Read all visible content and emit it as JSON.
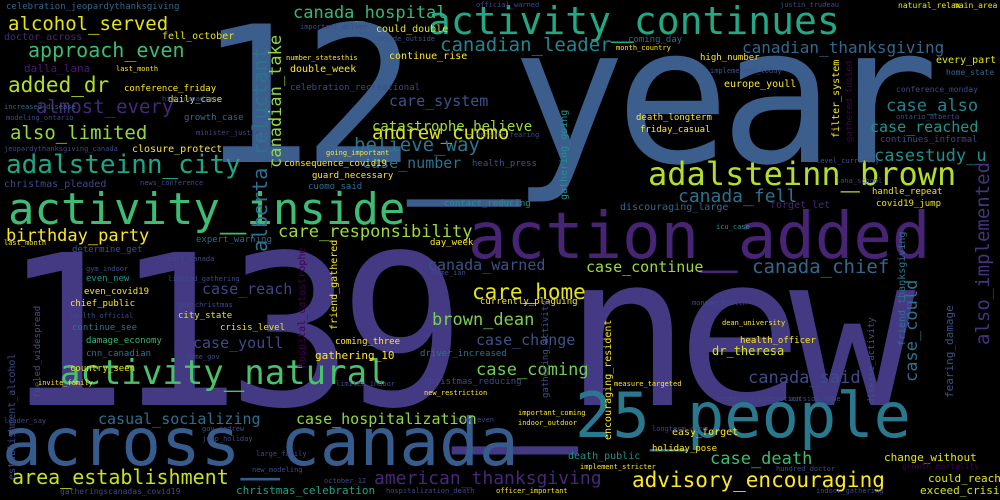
{
  "wordcloud": {
    "background": "#000000",
    "words": [
      {
        "text": "1139_new",
        "color": "#443983",
        "orientation": "horizontal"
      },
      {
        "text": "12_year",
        "color": "#3b5e8d",
        "orientation": "horizontal"
      },
      {
        "text": "action_added",
        "color": "#482475",
        "orientation": "horizontal"
      },
      {
        "text": "across_canada",
        "color": "#365c8d",
        "orientation": "horizontal"
      },
      {
        "text": "25_people",
        "color": "#2a788e",
        "orientation": "horizontal"
      },
      {
        "text": "activity_continues",
        "color": "#22a884",
        "orientation": "horizontal"
      },
      {
        "text": "activity_inside",
        "color": "#3dbc74",
        "orientation": "horizontal"
      },
      {
        "text": "activity_natural",
        "color": "#4ac16d",
        "orientation": "horizontal"
      },
      {
        "text": "adalsteinn_brown",
        "color": "#b5de2b",
        "orientation": "horizontal"
      },
      {
        "text": "adalsteinn_city",
        "color": "#20a486",
        "orientation": "horizontal"
      },
      {
        "text": "canadian_leader",
        "color": "#25848e",
        "orientation": "horizontal"
      },
      {
        "text": "canadian_thanksgiving",
        "color": "#31688e",
        "orientation": "horizontal"
      },
      {
        "text": "canada_hospital",
        "color": "#35b779",
        "orientation": "horizontal"
      },
      {
        "text": "alcohol_served",
        "color": "#e5e419",
        "orientation": "horizontal"
      },
      {
        "text": "approach_even",
        "color": "#3dbc74",
        "orientation": "horizontal"
      },
      {
        "text": "added_dr",
        "color": "#b5de2b",
        "orientation": "horizontal"
      },
      {
        "text": "almost_every",
        "color": "#482878",
        "orientation": "horizontal"
      },
      {
        "text": "also_limited",
        "color": "#90d743",
        "orientation": "horizontal"
      },
      {
        "text": "andrew_cuomo",
        "color": "#e5e419",
        "orientation": "horizontal"
      },
      {
        "text": "believe_way",
        "color": "#2a788e",
        "orientation": "horizontal"
      },
      {
        "text": "care_system",
        "color": "#3b528b",
        "orientation": "horizontal"
      },
      {
        "text": "catastrophe_believe",
        "color": "#9fda3a",
        "orientation": "horizontal"
      },
      {
        "text": "case_also",
        "color": "#26828e",
        "orientation": "horizontal"
      },
      {
        "text": "case_reached",
        "color": "#1f948c",
        "orientation": "horizontal"
      },
      {
        "text": "casestudy_u",
        "color": "#21918c",
        "orientation": "horizontal"
      },
      {
        "text": "case_number",
        "color": "#2c728e",
        "orientation": "horizontal"
      },
      {
        "text": "canada_fell",
        "color": "#2c728e",
        "orientation": "horizontal"
      },
      {
        "text": "birthday_party",
        "color": "#fde725",
        "orientation": "horizontal"
      },
      {
        "text": "care_responsibility",
        "color": "#9fda3a",
        "orientation": "horizontal"
      },
      {
        "text": "canada_warned",
        "color": "#3b528b",
        "orientation": "horizontal"
      },
      {
        "text": "case_continue",
        "color": "#9fda3a",
        "orientation": "horizontal"
      },
      {
        "text": "canada_chief",
        "color": "#31688e",
        "orientation": "horizontal"
      },
      {
        "text": "care_home",
        "color": "#e5e419",
        "orientation": "horizontal"
      },
      {
        "text": "brown_dean",
        "color": "#7ad151",
        "orientation": "horizontal"
      },
      {
        "text": "case_change",
        "color": "#3b528b",
        "orientation": "horizontal"
      },
      {
        "text": "case_coming",
        "color": "#6ece58",
        "orientation": "horizontal"
      },
      {
        "text": "case_reach",
        "color": "#414487",
        "orientation": "horizontal"
      },
      {
        "text": "case_youll",
        "color": "#3e4a89",
        "orientation": "horizontal"
      },
      {
        "text": "canada_said",
        "color": "#3e4a89",
        "orientation": "horizontal"
      },
      {
        "text": "case_hospitalization",
        "color": "#8fd744",
        "orientation": "horizontal"
      },
      {
        "text": "casual_socializing",
        "color": "#2e6f8e",
        "orientation": "horizontal"
      },
      {
        "text": "american_thanksgiving",
        "color": "#482878",
        "orientation": "horizontal"
      },
      {
        "text": "area_establishment",
        "color": "#c8e020",
        "orientation": "horizontal"
      },
      {
        "text": "advisory_encouraging",
        "color": "#fde725",
        "orientation": "horizontal"
      },
      {
        "text": "case_death",
        "color": "#3dbc74",
        "orientation": "horizontal"
      },
      {
        "text": "christmas_celebration",
        "color": "#1fa187",
        "orientation": "horizontal"
      },
      {
        "text": "could_reach",
        "color": "#e5e419",
        "orientation": "horizontal"
      },
      {
        "text": "exceed_crisis",
        "color": "#d8e219",
        "orientation": "horizontal"
      },
      {
        "text": "change_without",
        "color": "#e5e419",
        "orientation": "horizontal"
      },
      {
        "text": "growth_mortality",
        "color": "#440154",
        "orientation": "horizontal"
      },
      {
        "text": "dr_theresa",
        "color": "#d8e219",
        "orientation": "horizontal"
      },
      {
        "text": "gathering_10",
        "color": "#fde725",
        "orientation": "horizontal"
      },
      {
        "text": "fell_october",
        "color": "#e5e419",
        "orientation": "horizontal"
      },
      {
        "text": "could_double",
        "color": "#e5e419",
        "orientation": "horizontal"
      },
      {
        "text": "double_week",
        "color": "#fde725",
        "orientation": "horizontal"
      },
      {
        "text": "continue_rise",
        "color": "#fde725",
        "orientation": "horizontal"
      },
      {
        "text": "high_number",
        "color": "#fde725",
        "orientation": "horizontal"
      },
      {
        "text": "coming_day",
        "color": "#31688e",
        "orientation": "horizontal"
      },
      {
        "text": "dalla_lana",
        "color": "#481a6c",
        "orientation": "horizontal"
      },
      {
        "text": "daily_case",
        "color": "#fde725",
        "orientation": "horizontal"
      },
      {
        "text": "conference_friday",
        "color": "#fde725",
        "orientation": "horizontal"
      },
      {
        "text": "high_canadian",
        "color": "#3b528b",
        "orientation": "horizontal"
      },
      {
        "text": "closure_protect",
        "color": "#fde725",
        "orientation": "horizontal"
      },
      {
        "text": "christmas_pleaded",
        "color": "#3e4a89",
        "orientation": "horizontal"
      },
      {
        "text": "consequence_covid19",
        "color": "#fde725",
        "orientation": "horizontal"
      },
      {
        "text": "guard_necessary",
        "color": "#fde725",
        "orientation": "horizontal"
      },
      {
        "text": "cuomo_said",
        "color": "#2c728e",
        "orientation": "horizontal"
      },
      {
        "text": "health_press",
        "color": "#3b528b",
        "orientation": "horizontal"
      },
      {
        "text": "contact_reducing",
        "color": "#21918c",
        "orientation": "horizontal"
      },
      {
        "text": "discouraging_large",
        "color": "#31688e",
        "orientation": "horizontal"
      },
      {
        "text": "forget_let",
        "color": "#482878",
        "orientation": "horizontal"
      },
      {
        "text": "handle_repeat",
        "color": "#e5e419",
        "orientation": "horizontal"
      },
      {
        "text": "covid19_jump",
        "color": "#e5e419",
        "orientation": "horizontal"
      },
      {
        "text": "day_week",
        "color": "#fde725",
        "orientation": "horizontal"
      },
      {
        "text": "expert_warning",
        "color": "#31688e",
        "orientation": "horizontal"
      },
      {
        "text": "determine_get",
        "color": "#3b528b",
        "orientation": "horizontal"
      },
      {
        "text": "even_new",
        "color": "#21918c",
        "orientation": "horizontal"
      },
      {
        "text": "even_covid19",
        "color": "#fde725",
        "orientation": "horizontal"
      },
      {
        "text": "chief_public",
        "color": "#fde725",
        "orientation": "horizontal"
      },
      {
        "text": "city_state",
        "color": "#e5e419",
        "orientation": "horizontal"
      },
      {
        "text": "crisis_level",
        "color": "#e5e419",
        "orientation": "horizontal"
      },
      {
        "text": "continue_see",
        "color": "#2c728e",
        "orientation": "horizontal"
      },
      {
        "text": "damage_economy",
        "color": "#35b779",
        "orientation": "horizontal"
      },
      {
        "text": "cnn_canadian",
        "color": "#2c728e",
        "orientation": "horizontal"
      },
      {
        "text": "coming_three",
        "color": "#fde725",
        "orientation": "horizontal"
      },
      {
        "text": "driver_increased",
        "color": "#2c728e",
        "orientation": "horizontal"
      },
      {
        "text": "christmas_reducing",
        "color": "#3e4a89",
        "orientation": "horizontal"
      },
      {
        "text": "country_seen",
        "color": "#e5e419",
        "orientation": "horizontal"
      },
      {
        "text": "currently_plaguing",
        "color": "#fde725",
        "orientation": "horizontal"
      },
      {
        "text": "easy_forget",
        "color": "#fde725",
        "orientation": "horizontal"
      },
      {
        "text": "holiday_pose",
        "color": "#fde725",
        "orientation": "horizontal"
      },
      {
        "text": "death_public",
        "color": "#21918c",
        "orientation": "horizontal"
      },
      {
        "text": "health_officer",
        "color": "#fde725",
        "orientation": "horizontal"
      },
      {
        "text": "death_longterm",
        "color": "#fde725",
        "orientation": "horizontal"
      },
      {
        "text": "friday_casual",
        "color": "#fde725",
        "orientation": "horizontal"
      },
      {
        "text": "europe_youll",
        "color": "#fde725",
        "orientation": "horizontal"
      },
      {
        "text": "case_could",
        "color": "#2c728e",
        "orientation": "vertical"
      },
      {
        "text": "alberta_reluctant",
        "color": "#2c728e",
        "orientation": "vertical"
      },
      {
        "text": "canadian_take",
        "color": "#90d743",
        "orientation": "vertical"
      },
      {
        "text": "also_implemented",
        "color": "#46327e",
        "orientation": "vertical"
      },
      {
        "text": "gathering_activity",
        "color": "#3b528b",
        "orientation": "vertical"
      },
      {
        "text": "encouraging_resident",
        "color": "#fde725",
        "orientation": "vertical"
      },
      {
        "text": "filter_system",
        "color": "#fde725",
        "orientation": "vertical"
      },
      {
        "text": "gathering_going",
        "color": "#21918c",
        "orientation": "vertical"
      },
      {
        "text": "gathered_fueled",
        "color": "#440154",
        "orientation": "vertical"
      },
      {
        "text": "fearing_damage",
        "color": "#3b528b",
        "orientation": "vertical"
      },
      {
        "text": "friend_thanksgiving",
        "color": "#2c728e",
        "orientation": "vertical"
      },
      {
        "text": "establishment_alcohol",
        "color": "#3e4a89",
        "orientation": "vertical"
      },
      {
        "text": "fueled_widespread",
        "color": "#3b528b",
        "orientation": "vertical"
      },
      {
        "text": "hospital_catastrophe",
        "color": "#440154",
        "orientation": "vertical"
      },
      {
        "text": "friend_gathered",
        "color": "#fde725",
        "orientation": "vertical"
      },
      {
        "text": "disease_activity",
        "color": "#3b528b",
        "orientation": "vertical"
      },
      {
        "text": "celebration_jeopardythanksgiving",
        "color": "#31688e",
        "orientation": "horizontal"
      },
      {
        "text": "doctor_across",
        "color": "#482878",
        "orientation": "horizontal"
      },
      {
        "text": "celebration_recreational",
        "color": "#3e4a89",
        "orientation": "horizontal"
      },
      {
        "text": "important_driver",
        "color": "#3e4a89",
        "orientation": "horizontal"
      },
      {
        "text": "inside_outside",
        "color": "#3b528b",
        "orientation": "horizontal"
      },
      {
        "text": "official_warned",
        "color": "#3e4a89",
        "orientation": "horizontal"
      },
      {
        "text": "justin_trudeau",
        "color": "#3e4a89",
        "orientation": "horizontal"
      },
      {
        "text": "natural_relax",
        "color": "#e5e419",
        "orientation": "horizontal"
      },
      {
        "text": "main_area",
        "color": "#e5e419",
        "orientation": "horizontal"
      },
      {
        "text": "every_part",
        "color": "#e5e419",
        "orientation": "horizontal"
      },
      {
        "text": "home_state",
        "color": "#31688e",
        "orientation": "horizontal"
      },
      {
        "text": "conference_monday",
        "color": "#3e4a89",
        "orientation": "horizontal"
      },
      {
        "text": "ontario_alberta",
        "color": "#3e4a89",
        "orientation": "horizontal"
      },
      {
        "text": "continues_informal",
        "color": "#3e4a89",
        "orientation": "horizontal"
      },
      {
        "text": "implemented_today",
        "color": "#3b528b",
        "orientation": "horizontal"
      },
      {
        "text": "month_country",
        "color": "#fde725",
        "orientation": "horizontal"
      },
      {
        "text": "number_statesthis",
        "color": "#fde725",
        "orientation": "horizontal"
      },
      {
        "text": "last_month",
        "color": "#fde725",
        "orientation": "horizontal"
      },
      {
        "text": "modeling_ontario",
        "color": "#3e4a89",
        "orientation": "horizontal"
      },
      {
        "text": "increased_disease",
        "color": "#31688e",
        "orientation": "horizontal"
      },
      {
        "text": "growth_case",
        "color": "#31688e",
        "orientation": "horizontal"
      },
      {
        "text": "minister_justin",
        "color": "#3e4a89",
        "orientation": "horizontal"
      },
      {
        "text": "jeopardythanksgiving_canada",
        "color": "#3e4a89",
        "orientation": "horizontal"
      },
      {
        "text": "news_conference",
        "color": "#3e4a89",
        "orientation": "horizontal"
      },
      {
        "text": "measure_fearing",
        "color": "#3e4a89",
        "orientation": "horizontal"
      },
      {
        "text": "going_important",
        "color": "#fde725",
        "orientation": "horizontal"
      },
      {
        "text": "level_currently",
        "color": "#3b528b",
        "orientation": "horizontal"
      },
      {
        "text": "lana_school",
        "color": "#3e4a89",
        "orientation": "horizontal"
      },
      {
        "text": "icu_case",
        "color": "#21918c",
        "orientation": "horizontal"
      },
      {
        "text": "last_month",
        "color": "#fde725",
        "orientation": "horizontal"
      },
      {
        "text": "gym_indoor",
        "color": "#3e4a89",
        "orientation": "horizontal"
      },
      {
        "text": "part_canada",
        "color": "#3e4a89",
        "orientation": "horizontal"
      },
      {
        "text": "home_ian",
        "color": "#3e4a89",
        "orientation": "horizontal"
      },
      {
        "text": "limited_gathering",
        "color": "#3e4a89",
        "orientation": "horizontal"
      },
      {
        "text": "get_christmas",
        "color": "#3e4a89",
        "orientation": "horizontal"
      },
      {
        "text": "health_official",
        "color": "#3e4a89",
        "orientation": "horizontal"
      },
      {
        "text": "dean_university",
        "color": "#fde725",
        "orientation": "horizontal"
      },
      {
        "text": "monday_health",
        "color": "#3e4a89",
        "orientation": "horizontal"
      },
      {
        "text": "home_gov",
        "color": "#3e4a89",
        "orientation": "horizontal"
      },
      {
        "text": "invite_family",
        "color": "#fde725",
        "orientation": "horizontal"
      },
      {
        "text": "limited_indoor",
        "color": "#3e4a89",
        "orientation": "horizontal"
      },
      {
        "text": "new_restriction",
        "color": "#fde725",
        "orientation": "horizontal"
      },
      {
        "text": "measure_targeted",
        "color": "#fde725",
        "orientation": "horizontal"
      },
      {
        "text": "necessary_precaution",
        "color": "#3e4a89",
        "orientation": "horizontal"
      },
      {
        "text": "outside_home",
        "color": "#3e4a89",
        "orientation": "horizontal"
      },
      {
        "text": "leader_say",
        "color": "#3e4a89",
        "orientation": "horizontal"
      },
      {
        "text": "gov_andrew",
        "color": "#3e4a89",
        "orientation": "horizontal"
      },
      {
        "text": "jump_holiday",
        "color": "#3e4a89",
        "orientation": "horizontal"
      },
      {
        "text": "important_coming",
        "color": "#fde725",
        "orientation": "horizontal"
      },
      {
        "text": "indoor_outdoor",
        "color": "#fde725",
        "orientation": "horizontal"
      },
      {
        "text": "home_even",
        "color": "#3e4a89",
        "orientation": "horizontal"
      },
      {
        "text": "longterm_care",
        "color": "#3e4a89",
        "orientation": "horizontal"
      },
      {
        "text": "large_family",
        "color": "#3e4a89",
        "orientation": "horizontal"
      },
      {
        "text": "new_modeling",
        "color": "#3e4a89",
        "orientation": "horizontal"
      },
      {
        "text": "implement_stricter",
        "color": "#fde725",
        "orientation": "horizontal"
      },
      {
        "text": "hundred_doctor",
        "color": "#3e4a89",
        "orientation": "horizontal"
      },
      {
        "text": "gatheringscanadas_covid19",
        "color": "#3e4a89",
        "orientation": "horizontal"
      },
      {
        "text": "october_12",
        "color": "#3e4a89",
        "orientation": "horizontal"
      },
      {
        "text": "hospitalization_death",
        "color": "#3e4a89",
        "orientation": "horizontal"
      },
      {
        "text": "officer_important",
        "color": "#fde725",
        "orientation": "horizontal"
      },
      {
        "text": "indoor_gathering",
        "color": "#3e4a89",
        "orientation": "horizontal"
      }
    ]
  }
}
